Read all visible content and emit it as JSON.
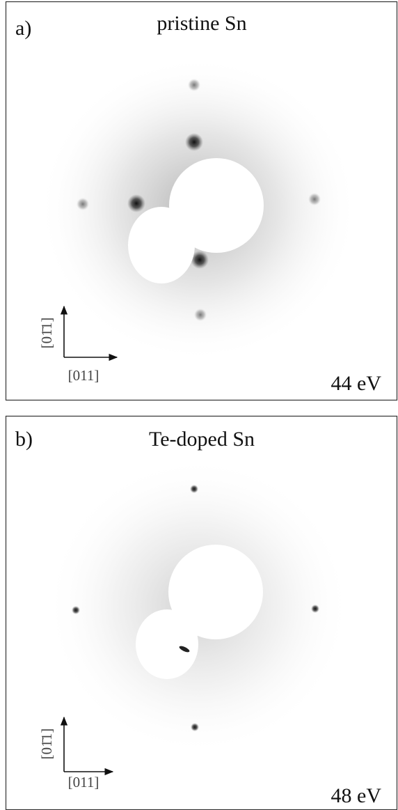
{
  "panels": [
    {
      "label": "a)",
      "title": "pristine Sn",
      "x_direction": "[011]",
      "y_direction": "[01̄1]",
      "energy": "44 eV"
    },
    {
      "label": "b)",
      "title": "Te-doped Sn",
      "x_direction": "[011]",
      "y_direction": "[01̄1]",
      "energy": "48 eV"
    }
  ]
}
